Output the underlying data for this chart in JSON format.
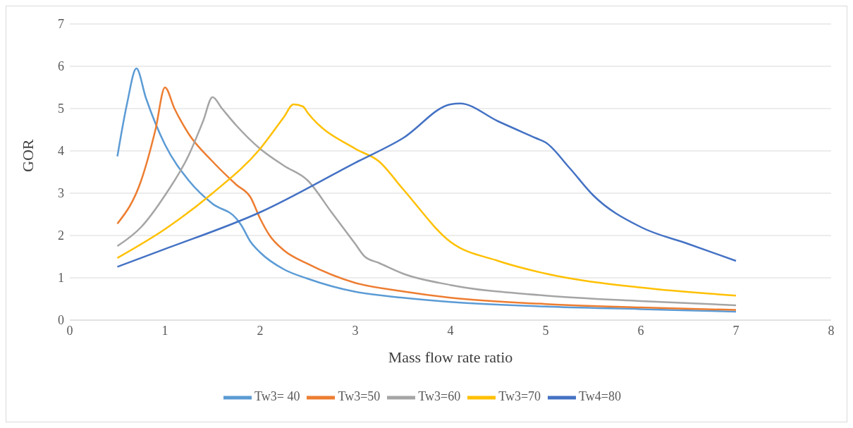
{
  "chart_data": {
    "type": "line",
    "xlabel": "Mass flow rate ratio",
    "ylabel": "GOR",
    "xlim": [
      0,
      8
    ],
    "xticks": [
      0,
      1,
      2,
      3,
      4,
      5,
      6,
      7,
      8
    ],
    "ylim": [
      0,
      7
    ],
    "yticks": [
      0,
      1,
      2,
      3,
      4,
      5,
      6,
      7
    ],
    "grid": "y",
    "legend": "bottom",
    "marker": "none",
    "line_style": "solid",
    "series": [
      {
        "name": "Tw3= 40",
        "color": "#5b9bd5",
        "x": [
          0.5,
          0.6,
          0.7,
          0.8,
          1.0,
          1.25,
          1.5,
          1.75,
          1.8,
          1.9,
          2.0,
          2.25,
          2.5,
          3,
          3.5,
          4,
          5,
          6,
          7
        ],
        "values": [
          3.87,
          5.1,
          5.95,
          5.25,
          4.15,
          3.3,
          2.75,
          2.4,
          2.25,
          1.85,
          1.6,
          1.2,
          0.98,
          0.67,
          0.53,
          0.43,
          0.32,
          0.26,
          0.2
        ]
      },
      {
        "name": "Tw3=50",
        "color": "#ed7d31",
        "x": [
          0.5,
          0.75,
          0.9,
          1.0,
          1.1,
          1.25,
          1.5,
          1.75,
          1.9,
          2.0,
          2.1,
          2.25,
          2.5,
          3,
          3.5,
          4,
          5,
          6,
          7
        ],
        "values": [
          2.28,
          3.3,
          4.5,
          5.5,
          5.0,
          4.4,
          3.75,
          3.2,
          2.9,
          2.4,
          2.0,
          1.65,
          1.33,
          0.88,
          0.68,
          0.53,
          0.38,
          0.3,
          0.24
        ]
      },
      {
        "name": "Tw3=60",
        "color": "#a5a5a5",
        "x": [
          0.5,
          0.75,
          1.0,
          1.25,
          1.4,
          1.5,
          1.6,
          1.75,
          2.0,
          2.25,
          2.5,
          2.75,
          3.0,
          3.1,
          3.25,
          3.5,
          4,
          5,
          6,
          7
        ],
        "values": [
          1.75,
          2.2,
          2.95,
          3.9,
          4.7,
          5.27,
          5.0,
          4.6,
          4.05,
          3.65,
          3.3,
          2.55,
          1.8,
          1.5,
          1.35,
          1.1,
          0.83,
          0.58,
          0.45,
          0.35
        ]
      },
      {
        "name": "Tw3=70",
        "color": "#ffc000",
        "x": [
          0.5,
          1.0,
          1.5,
          2.0,
          2.25,
          2.35,
          2.45,
          2.5,
          3.0,
          3.25,
          3.5,
          4.0,
          4.5,
          5,
          6,
          7
        ],
        "values": [
          1.47,
          2.15,
          3.0,
          4.05,
          4.8,
          5.1,
          5.05,
          4.9,
          4.05,
          3.75,
          3.1,
          1.85,
          1.4,
          1.1,
          0.77,
          0.58
        ]
      },
      {
        "name": "Tw4=80",
        "color": "#4472c4",
        "x": [
          0.5,
          1.0,
          2.0,
          3.0,
          3.5,
          4.0,
          4.1,
          4.5,
          4.9,
          5.0,
          5.25,
          5.5,
          6.0,
          6.5,
          7.0
        ],
        "values": [
          1.26,
          1.68,
          2.55,
          3.72,
          4.3,
          5.1,
          5.12,
          4.7,
          4.3,
          4.2,
          3.6,
          2.95,
          2.2,
          1.8,
          1.4
        ]
      }
    ]
  }
}
